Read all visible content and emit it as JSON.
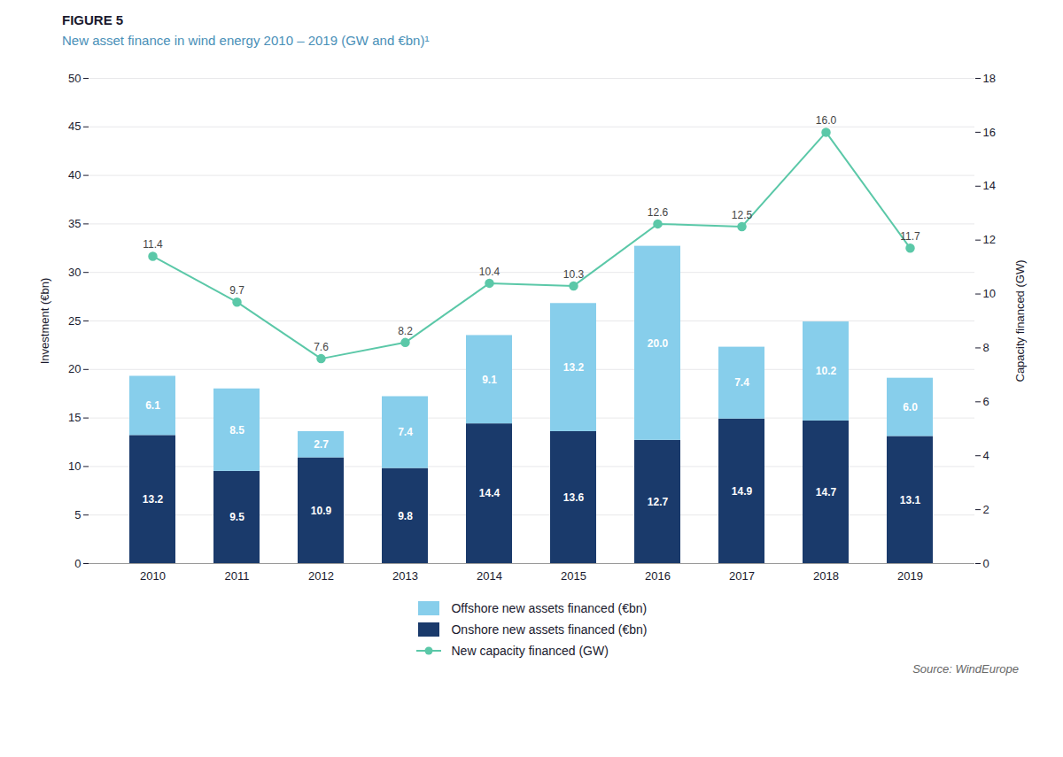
{
  "chart_data": {
    "type": "bar",
    "title": "FIGURE 5",
    "subtitle": "New asset finance in wind energy 2010 – 2019 (GW and €bn)¹",
    "categories": [
      "2010",
      "2011",
      "2012",
      "2013",
      "2014",
      "2015",
      "2016",
      "2017",
      "2018",
      "2019"
    ],
    "series": [
      {
        "name": "Onshore new assets financed (€bn)",
        "color": "#1a3a6b",
        "values": [
          13.2,
          9.5,
          10.9,
          9.8,
          14.4,
          13.6,
          12.7,
          14.9,
          14.7,
          13.1
        ]
      },
      {
        "name": "Offshore new assets financed (€bn)",
        "color": "#87ceeb",
        "values": [
          6.1,
          8.5,
          2.7,
          7.4,
          9.1,
          13.2,
          20.0,
          7.4,
          10.2,
          6.0
        ],
        "value_labels": [
          "6.1",
          "8.5",
          "2.7",
          "7.4",
          "9.1",
          "13.2",
          "20.0",
          "7.4",
          "10.2",
          "6.0"
        ]
      },
      {
        "name": "New capacity financed (GW)",
        "type": "line",
        "axis": "y2",
        "color": "#5bc8a8",
        "marker": "circle",
        "values": [
          11.4,
          9.7,
          7.6,
          8.2,
          10.4,
          10.3,
          12.6,
          12.5,
          16.0,
          11.7
        ],
        "value_labels": [
          "11.4",
          "9.7",
          "7.6",
          "8.2",
          "10.4",
          "10.3",
          "12.6",
          "12.5",
          "16.0",
          "11.7"
        ]
      }
    ],
    "stacked": true,
    "data_labels": true,
    "grid": true,
    "legend": "bottom",
    "ylabel": "Investment (€bn)",
    "y2label": "Capacity financed (GW)",
    "ylim": [
      0,
      50
    ],
    "yticks": [
      0,
      5,
      10,
      15,
      20,
      25,
      30,
      35,
      40,
      45,
      50
    ],
    "y2lim": [
      0,
      18
    ],
    "y2ticks": [
      0,
      2,
      4,
      6,
      8,
      10,
      12,
      14,
      16,
      18
    ],
    "annotations": [
      "Source: WindEurope"
    ]
  }
}
